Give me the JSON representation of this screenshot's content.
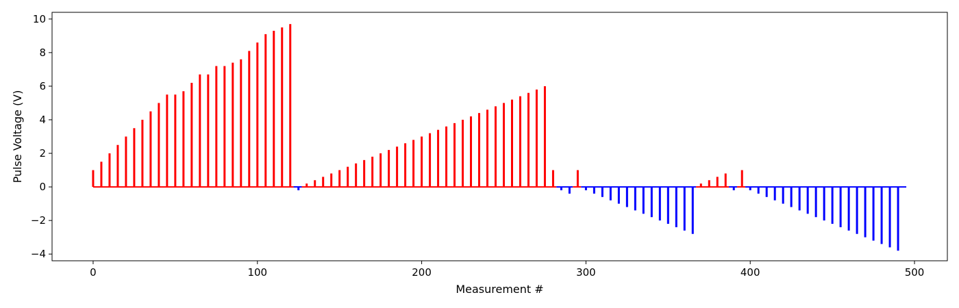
{
  "chart_data": {
    "type": "bar",
    "xlabel": "Measurement #",
    "ylabel": "Pulse Voltage (V)",
    "xlim": [
      -25,
      520
    ],
    "ylim": [
      -4.4,
      10.4
    ],
    "xticks": [
      0,
      100,
      200,
      300,
      400,
      500
    ],
    "yticks": [
      -4,
      -2,
      0,
      2,
      4,
      6,
      8,
      10
    ],
    "grid": false,
    "colors": {
      "positive": "#ff0000",
      "negative": "#0000ff"
    },
    "baseline_segments": [
      {
        "x": [
          0,
          122
        ],
        "color": "#ff0000"
      },
      {
        "x": [
          122,
          127
        ],
        "color": "#0000ff"
      },
      {
        "x": [
          127,
          282
        ],
        "color": "#ff0000"
      },
      {
        "x": [
          282,
          292
        ],
        "color": "#0000ff"
      },
      {
        "x": [
          292,
          297
        ],
        "color": "#ff0000"
      },
      {
        "x": [
          297,
          367
        ],
        "color": "#0000ff"
      },
      {
        "x": [
          367,
          387
        ],
        "color": "#ff0000"
      },
      {
        "x": [
          387,
          392
        ],
        "color": "#0000ff"
      },
      {
        "x": [
          392,
          397
        ],
        "color": "#ff0000"
      },
      {
        "x": [
          397,
          495
        ],
        "color": "#0000ff"
      }
    ],
    "x": [
      0,
      5,
      10,
      15,
      20,
      25,
      30,
      35,
      40,
      45,
      50,
      55,
      60,
      65,
      70,
      75,
      80,
      85,
      90,
      95,
      100,
      105,
      110,
      115,
      120,
      125,
      130,
      135,
      140,
      145,
      150,
      155,
      160,
      165,
      170,
      175,
      180,
      185,
      190,
      195,
      200,
      205,
      210,
      215,
      220,
      225,
      230,
      235,
      240,
      245,
      250,
      255,
      260,
      265,
      270,
      275,
      280,
      285,
      290,
      295,
      300,
      305,
      310,
      315,
      320,
      325,
      330,
      335,
      340,
      345,
      350,
      355,
      360,
      365,
      370,
      375,
      380,
      385,
      390,
      395,
      400,
      405,
      410,
      415,
      420,
      425,
      430,
      435,
      440,
      445,
      450,
      455,
      460,
      465,
      470,
      475,
      480,
      485,
      490
    ],
    "values": [
      1.0,
      1.5,
      2.0,
      2.5,
      3.0,
      3.5,
      4.0,
      4.5,
      5.0,
      5.5,
      5.5,
      5.7,
      6.2,
      6.7,
      6.7,
      7.2,
      7.2,
      7.4,
      7.6,
      8.1,
      8.6,
      9.1,
      9.3,
      9.5,
      9.7,
      -0.2,
      0.2,
      0.4,
      0.6,
      0.8,
      1.0,
      1.2,
      1.4,
      1.6,
      1.8,
      2.0,
      2.2,
      2.4,
      2.6,
      2.8,
      3.0,
      3.2,
      3.4,
      3.6,
      3.8,
      4.0,
      4.2,
      4.4,
      4.6,
      4.8,
      5.0,
      5.2,
      5.4,
      5.6,
      5.8,
      6.0,
      1.0,
      -0.2,
      -0.4,
      1.0,
      -0.2,
      -0.4,
      -0.6,
      -0.8,
      -1.0,
      -1.2,
      -1.4,
      -1.6,
      -1.8,
      -2.0,
      -2.2,
      -2.4,
      -2.6,
      -2.8,
      0.2,
      0.4,
      0.6,
      0.8,
      -0.2,
      1.0,
      -0.2,
      -0.4,
      -0.6,
      -0.8,
      -1.0,
      -1.2,
      -1.4,
      -1.6,
      -1.8,
      -2.0,
      -2.2,
      -2.4,
      -2.6,
      -2.8,
      -3.0,
      -3.2,
      -3.4,
      -3.6,
      -3.8
    ]
  }
}
